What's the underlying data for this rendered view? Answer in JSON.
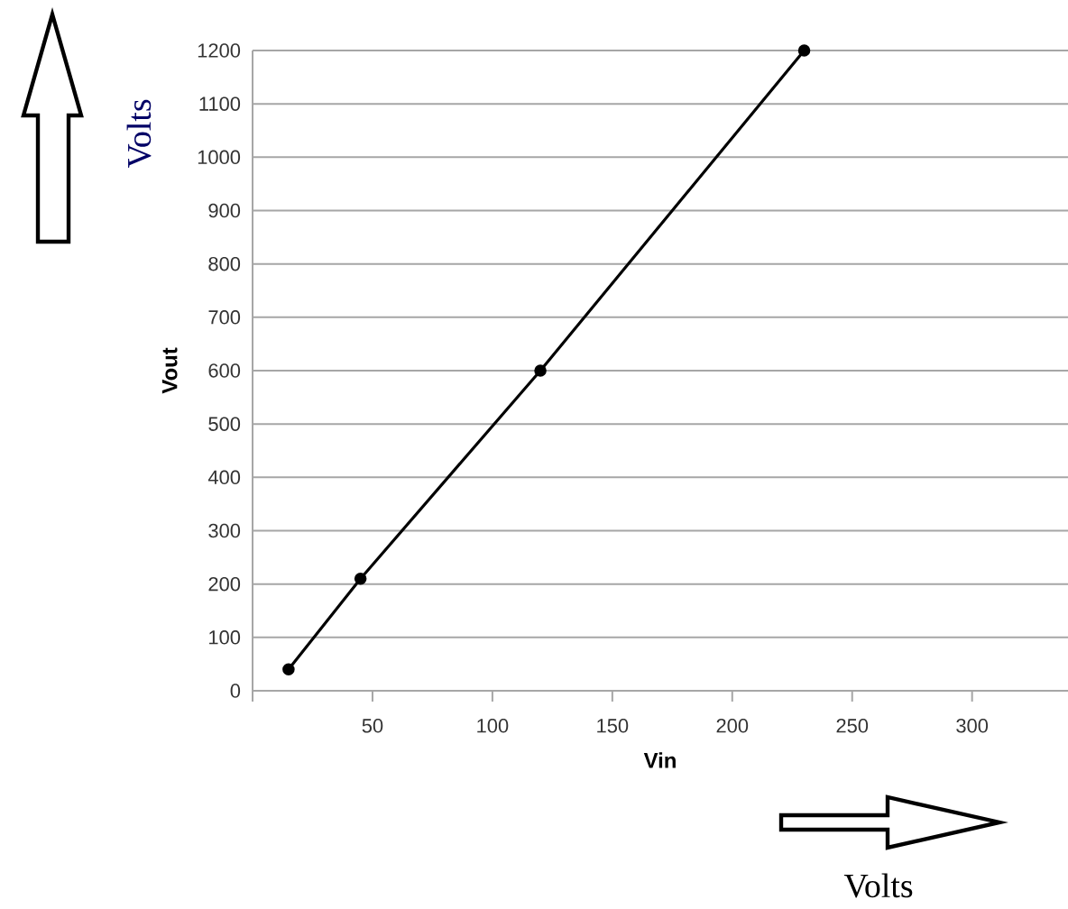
{
  "chart_data": {
    "type": "line",
    "xlabel": "Vin",
    "ylabel": "Vout",
    "annotations": [
      "Volts",
      "Volts"
    ],
    "x": [
      15,
      45,
      120,
      230
    ],
    "series": [
      {
        "color": "#000000",
        "values": [
          40,
          210,
          600,
          1200
        ]
      }
    ],
    "xlim": [
      0,
      340
    ],
    "ylim": [
      0,
      1200
    ],
    "xticks": [
      {
        "value": 0,
        "label": null
      },
      50,
      100,
      150,
      200,
      250,
      300
    ],
    "yticks": [
      0,
      100,
      200,
      300,
      400,
      500,
      600,
      700,
      800,
      900,
      1000,
      1100,
      1200
    ],
    "grid": "y",
    "marker": "circle",
    "line_style": "solid"
  }
}
